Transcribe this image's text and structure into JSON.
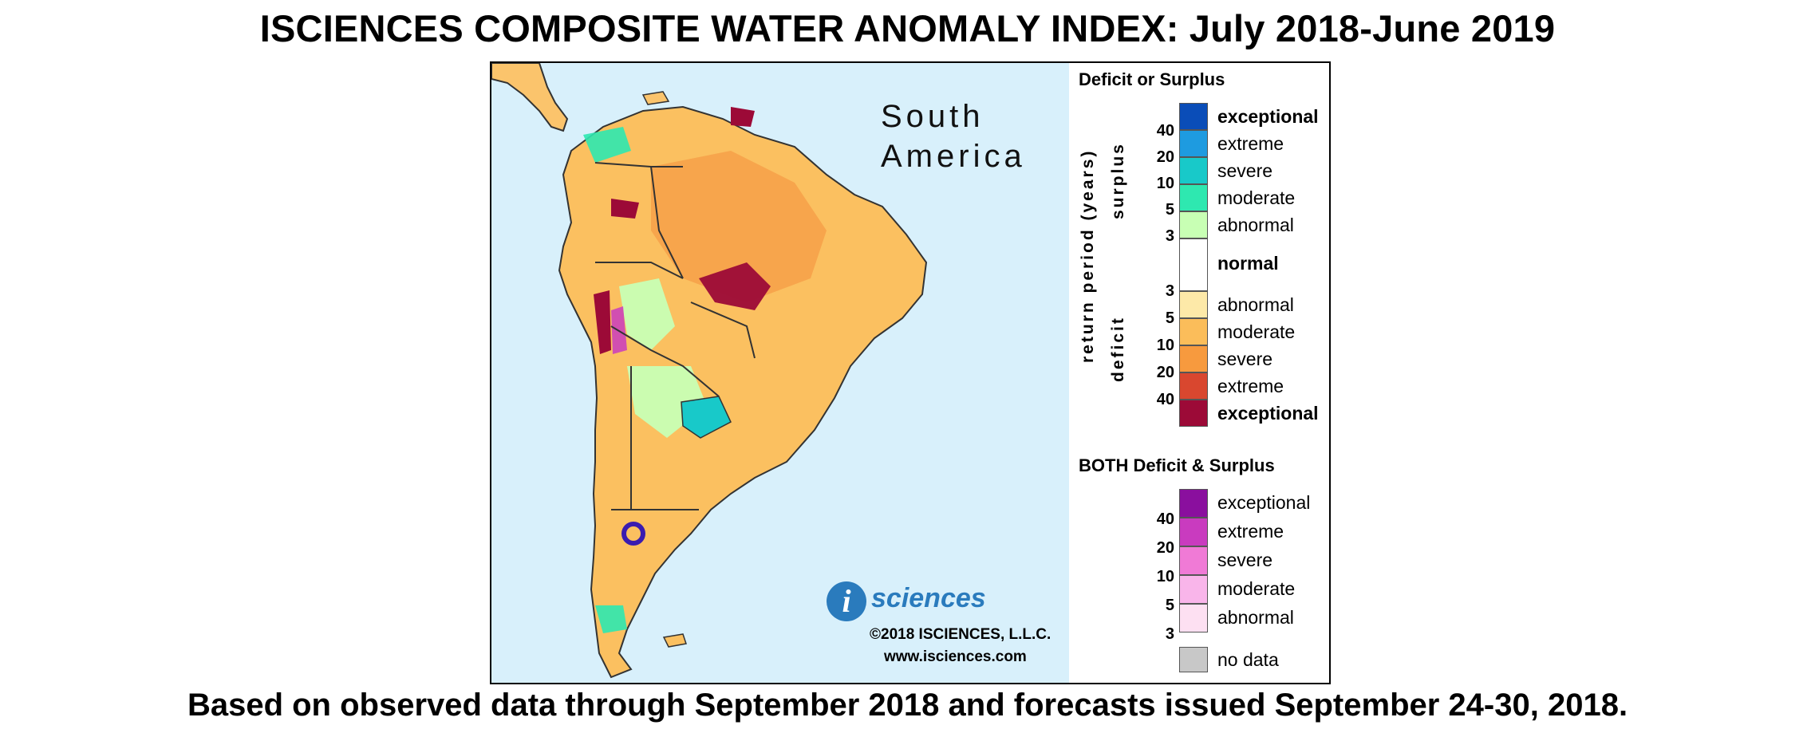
{
  "title": "ISCIENCES COMPOSITE WATER ANOMALY INDEX: July 2018-June 2019",
  "subtitle": "Based on observed data through September 2018 and forecasts issued September 24-30, 2018.",
  "map": {
    "region_line1": "South",
    "region_line2": "America",
    "logo_letter": "i",
    "logo_word": "sciences",
    "copyright": "©2018 ISCIENCES, L.L.C.",
    "website": "www.isciences.com"
  },
  "legend": {
    "deficit_surplus_title": "Deficit or Surplus",
    "axis_label": "return period (years)",
    "surplus_label": "surplus",
    "deficit_label": "deficit",
    "surplus_ticks": [
      "40",
      "20",
      "10",
      "5",
      "3"
    ],
    "deficit_ticks": [
      "3",
      "5",
      "10",
      "20",
      "40"
    ],
    "surplus_classes": [
      {
        "label": "exceptional",
        "color": "#0a4db8"
      },
      {
        "label": "extreme",
        "color": "#1e9be0"
      },
      {
        "label": "severe",
        "color": "#18c9c9"
      },
      {
        "label": "moderate",
        "color": "#2ee8b0"
      },
      {
        "label": "abnormal",
        "color": "#c8ffb4"
      }
    ],
    "normal": {
      "label": "normal",
      "color": "#ffffff"
    },
    "deficit_classes": [
      {
        "label": "abnormal",
        "color": "#fde9a8"
      },
      {
        "label": "moderate",
        "color": "#fbbd5a"
      },
      {
        "label": "severe",
        "color": "#f79a3e"
      },
      {
        "label": "extreme",
        "color": "#d9472f"
      },
      {
        "label": "exceptional",
        "color": "#9c0a37"
      }
    ],
    "both_title": "BOTH Deficit & Surplus",
    "both_ticks": [
      "40",
      "20",
      "10",
      "5",
      "3"
    ],
    "both_classes": [
      {
        "label": "exceptional",
        "color": "#8a0f9e"
      },
      {
        "label": "extreme",
        "color": "#c93bbf"
      },
      {
        "label": "severe",
        "color": "#f07ad6"
      },
      {
        "label": "moderate",
        "color": "#f9b5ea"
      },
      {
        "label": "abnormal",
        "color": "#fde0f2"
      }
    ],
    "no_data": {
      "label": "no data",
      "color": "#c8c8c8"
    }
  }
}
